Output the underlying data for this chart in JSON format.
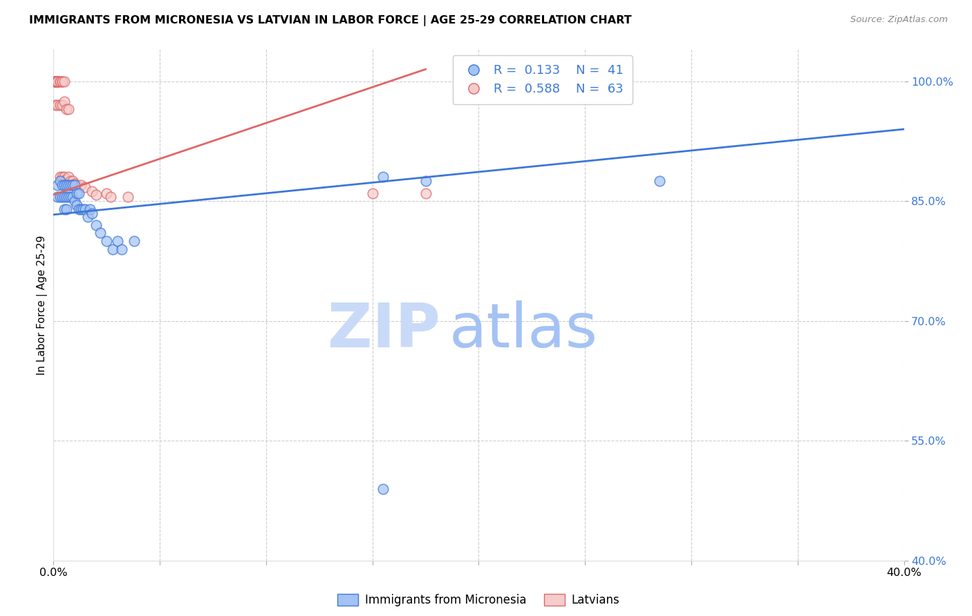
{
  "title": "IMMIGRANTS FROM MICRONESIA VS LATVIAN IN LABOR FORCE | AGE 25-29 CORRELATION CHART",
  "source": "Source: ZipAtlas.com",
  "ylabel": "In Labor Force | Age 25-29",
  "xlim": [
    0.0,
    0.4
  ],
  "ylim": [
    0.4,
    1.04
  ],
  "ytick_vals": [
    0.4,
    0.55,
    0.7,
    0.85,
    1.0
  ],
  "ytick_labels": [
    "40.0%",
    "55.0%",
    "70.0%",
    "85.0%",
    "100.0%"
  ],
  "xtick_vals": [
    0.0,
    0.05,
    0.1,
    0.15,
    0.2,
    0.25,
    0.3,
    0.35,
    0.4
  ],
  "xtick_label_show": [
    "0.0%",
    "",
    "",
    "",
    "",
    "",
    "",
    "",
    "40.0%"
  ],
  "blue_R": 0.133,
  "blue_N": 41,
  "pink_R": 0.588,
  "pink_N": 63,
  "blue_x": [
    0.002,
    0.002,
    0.003,
    0.003,
    0.004,
    0.004,
    0.005,
    0.005,
    0.005,
    0.006,
    0.006,
    0.006,
    0.007,
    0.007,
    0.008,
    0.008,
    0.009,
    0.009,
    0.01,
    0.01,
    0.011,
    0.011,
    0.012,
    0.012,
    0.013,
    0.014,
    0.015,
    0.016,
    0.017,
    0.018,
    0.02,
    0.022,
    0.025,
    0.028,
    0.03,
    0.032,
    0.038,
    0.155,
    0.175,
    0.285,
    0.155
  ],
  "blue_y": [
    0.87,
    0.855,
    0.875,
    0.855,
    0.87,
    0.855,
    0.87,
    0.855,
    0.84,
    0.87,
    0.855,
    0.84,
    0.87,
    0.855,
    0.87,
    0.855,
    0.87,
    0.855,
    0.87,
    0.85,
    0.86,
    0.845,
    0.86,
    0.84,
    0.84,
    0.84,
    0.84,
    0.83,
    0.84,
    0.835,
    0.82,
    0.81,
    0.8,
    0.79,
    0.8,
    0.79,
    0.8,
    0.88,
    0.875,
    0.875,
    0.49
  ],
  "pink_x": [
    0.001,
    0.001,
    0.001,
    0.001,
    0.001,
    0.001,
    0.001,
    0.001,
    0.001,
    0.001,
    0.001,
    0.001,
    0.001,
    0.001,
    0.001,
    0.001,
    0.001,
    0.001,
    0.001,
    0.001,
    0.001,
    0.001,
    0.001,
    0.001,
    0.001,
    0.002,
    0.002,
    0.002,
    0.002,
    0.002,
    0.002,
    0.002,
    0.002,
    0.002,
    0.002,
    0.003,
    0.003,
    0.003,
    0.003,
    0.004,
    0.004,
    0.004,
    0.004,
    0.005,
    0.005,
    0.005,
    0.006,
    0.006,
    0.007,
    0.007,
    0.008,
    0.009,
    0.01,
    0.011,
    0.013,
    0.015,
    0.018,
    0.02,
    0.025,
    0.027,
    0.035,
    0.15,
    0.175
  ],
  "pink_y": [
    1.0,
    1.0,
    1.0,
    1.0,
    1.0,
    1.0,
    1.0,
    1.0,
    1.0,
    1.0,
    1.0,
    1.0,
    1.0,
    1.0,
    1.0,
    1.0,
    1.0,
    1.0,
    1.0,
    1.0,
    1.0,
    1.0,
    1.0,
    1.0,
    0.97,
    1.0,
    1.0,
    1.0,
    1.0,
    1.0,
    1.0,
    1.0,
    1.0,
    1.0,
    0.97,
    1.0,
    1.0,
    0.97,
    0.88,
    1.0,
    1.0,
    0.97,
    0.88,
    1.0,
    0.975,
    0.88,
    0.965,
    0.878,
    0.965,
    0.88,
    0.875,
    0.875,
    0.872,
    0.87,
    0.87,
    0.867,
    0.862,
    0.858,
    0.86,
    0.855,
    0.855,
    0.86,
    0.86
  ],
  "blue_line_x": [
    0.0,
    0.4
  ],
  "blue_line_y": [
    0.833,
    0.94
  ],
  "pink_line_x": [
    0.0,
    0.175
  ],
  "pink_line_y": [
    0.858,
    1.015
  ],
  "blue_face": "#a4c2f4",
  "blue_edge": "#3c78d8",
  "pink_face": "#f4cccc",
  "pink_edge": "#e06666",
  "blue_line_color": "#3c78d8",
  "pink_line_color": "#e06666",
  "watermark_zip_color": "#c9daf8",
  "watermark_atlas_color": "#a4c2f4",
  "legend_blue": "Immigrants from Micronesia",
  "legend_pink": "Latvians",
  "bg_color": "#ffffff",
  "grid_color": "#cccccc"
}
